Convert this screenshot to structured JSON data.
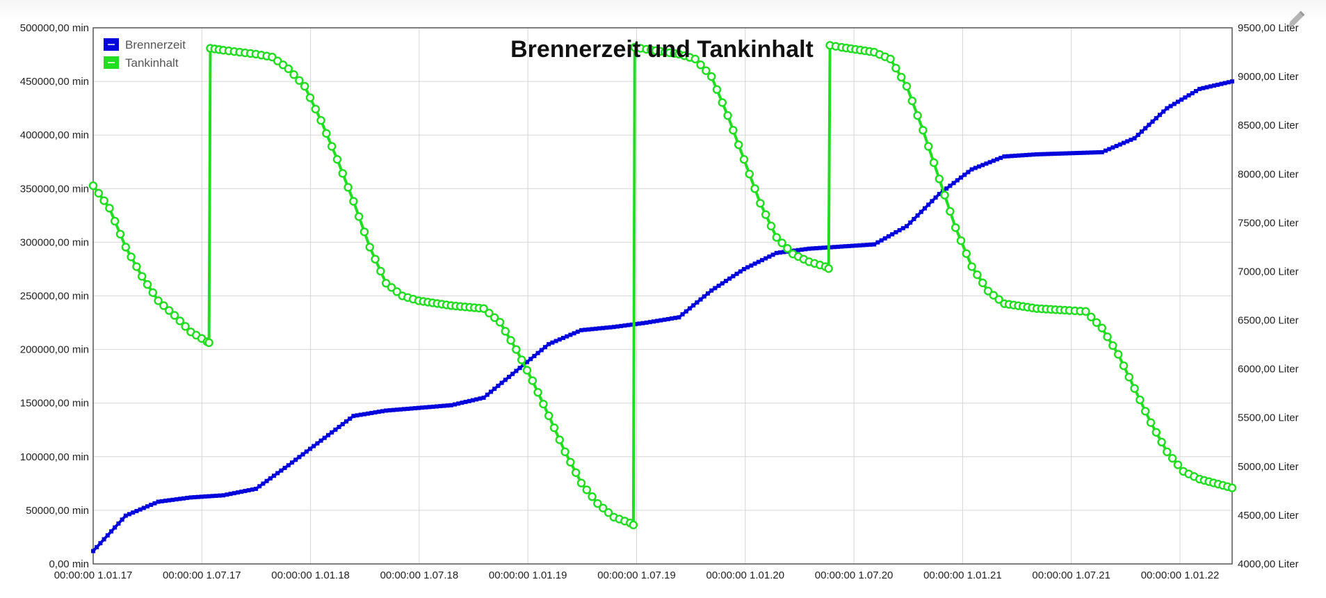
{
  "chart_data": {
    "type": "line",
    "title": "Brennerzeit und Tankinhalt",
    "x_ticks": [
      "00:00:00 1.01.17",
      "00:00:00 1.07.17",
      "00:00:00 1.01.18",
      "00:00:00 1.07.18",
      "00:00:00 1.01.19",
      "00:00:00 1.07.19",
      "00:00:00 1.01.20",
      "00:00:00 1.07.20",
      "00:00:00 1.01.21",
      "00:00:00 1.07.21",
      "00:00:00 1.01.22"
    ],
    "y_left": {
      "ylim": [
        0,
        500000
      ],
      "ticks": [
        "0,00 min",
        "50000,00 min",
        "100000,00 min",
        "150000,00 min",
        "200000,00 min",
        "250000,00 min",
        "300000,00 min",
        "350000,00 min",
        "400000,00 min",
        "450000,00 min",
        "500000,00 min"
      ]
    },
    "y_right": {
      "ylim": [
        4000,
        9500
      ],
      "ticks": [
        "4000,00 Liter",
        "4500,00 Liter",
        "5000,00 Liter",
        "5500,00 Liter",
        "6000,00 Liter",
        "6500,00 Liter",
        "7000,00 Liter",
        "7500,00 Liter",
        "8000,00 Liter",
        "8500,00 Liter",
        "9000,00 Liter",
        "9500,00 Liter"
      ]
    },
    "grid": true,
    "legend": "top-left",
    "series": [
      {
        "name": "Brennerzeit",
        "axis": "left",
        "color": "#0000dd",
        "marker": "square",
        "points": [
          [
            0.0,
            12000
          ],
          [
            0.5,
            45000
          ],
          [
            1.0,
            58000
          ],
          [
            1.5,
            62000
          ],
          [
            2.0,
            64000
          ],
          [
            2.5,
            70000
          ],
          [
            3.0,
            92000
          ],
          [
            3.5,
            115000
          ],
          [
            4.0,
            138000
          ],
          [
            4.5,
            143000
          ],
          [
            5.0,
            145500
          ],
          [
            5.5,
            148000
          ],
          [
            6.0,
            155000
          ],
          [
            6.5,
            180000
          ],
          [
            7.0,
            205000
          ],
          [
            7.5,
            218000
          ],
          [
            8.0,
            221000
          ],
          [
            8.5,
            225000
          ],
          [
            9.0,
            230000
          ],
          [
            9.5,
            255000
          ],
          [
            10.0,
            275000
          ],
          [
            10.5,
            290000
          ],
          [
            11.0,
            294000
          ],
          [
            11.5,
            296000
          ],
          [
            12.0,
            298000
          ],
          [
            12.5,
            315000
          ],
          [
            13.0,
            345000
          ],
          [
            13.5,
            368000
          ],
          [
            14.0,
            380000
          ],
          [
            14.5,
            382000
          ],
          [
            15.0,
            383000
          ],
          [
            15.5,
            384000
          ],
          [
            16.0,
            397000
          ],
          [
            16.5,
            425000
          ],
          [
            17.0,
            443000
          ],
          [
            17.5,
            450000
          ]
        ]
      },
      {
        "name": "Tankinhalt",
        "axis": "right",
        "color": "#22dd22",
        "marker": "circle",
        "points": [
          [
            0.0,
            7880
          ],
          [
            0.25,
            7650
          ],
          [
            0.5,
            7250
          ],
          [
            0.75,
            6950
          ],
          [
            1.0,
            6700
          ],
          [
            1.25,
            6550
          ],
          [
            1.5,
            6380
          ],
          [
            1.75,
            6280
          ],
          [
            1.78,
            6270
          ],
          [
            1.8,
            9290
          ],
          [
            2.0,
            9270
          ],
          [
            2.25,
            9250
          ],
          [
            2.5,
            9230
          ],
          [
            2.75,
            9200
          ],
          [
            3.0,
            9080
          ],
          [
            3.25,
            8900
          ],
          [
            3.5,
            8550
          ],
          [
            3.75,
            8150
          ],
          [
            4.0,
            7720
          ],
          [
            4.25,
            7250
          ],
          [
            4.5,
            6880
          ],
          [
            4.75,
            6750
          ],
          [
            5.0,
            6700
          ],
          [
            5.5,
            6650
          ],
          [
            6.0,
            6620
          ],
          [
            6.25,
            6480
          ],
          [
            6.5,
            6200
          ],
          [
            6.75,
            5880
          ],
          [
            7.0,
            5520
          ],
          [
            7.25,
            5150
          ],
          [
            7.5,
            4830
          ],
          [
            7.75,
            4620
          ],
          [
            8.0,
            4480
          ],
          [
            8.25,
            4420
          ],
          [
            8.3,
            4400
          ],
          [
            8.32,
            9300
          ],
          [
            8.5,
            9280
          ],
          [
            9.0,
            9230
          ],
          [
            9.25,
            9180
          ],
          [
            9.5,
            9000
          ],
          [
            9.75,
            8600
          ],
          [
            10.0,
            8150
          ],
          [
            10.25,
            7700
          ],
          [
            10.5,
            7350
          ],
          [
            10.75,
            7180
          ],
          [
            11.0,
            7100
          ],
          [
            11.25,
            7050
          ],
          [
            11.3,
            7030
          ],
          [
            11.32,
            9320
          ],
          [
            11.5,
            9300
          ],
          [
            12.0,
            9250
          ],
          [
            12.25,
            9180
          ],
          [
            12.5,
            8900
          ],
          [
            12.75,
            8450
          ],
          [
            13.0,
            7950
          ],
          [
            13.25,
            7450
          ],
          [
            13.5,
            7050
          ],
          [
            13.75,
            6800
          ],
          [
            14.0,
            6670
          ],
          [
            14.5,
            6620
          ],
          [
            15.0,
            6600
          ],
          [
            15.25,
            6590
          ],
          [
            15.5,
            6420
          ],
          [
            15.75,
            6150
          ],
          [
            16.0,
            5800
          ],
          [
            16.25,
            5450
          ],
          [
            16.5,
            5150
          ],
          [
            16.75,
            4950
          ],
          [
            17.0,
            4870
          ],
          [
            17.5,
            4780
          ]
        ]
      }
    ]
  }
}
